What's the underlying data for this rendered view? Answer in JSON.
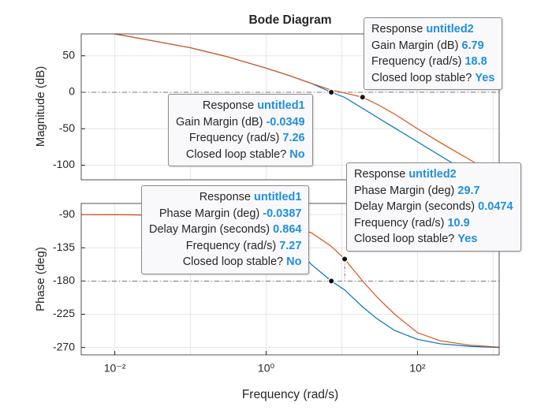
{
  "chart_data": [
    {
      "type": "line",
      "title": "Bode Diagram",
      "ylabel": "Magnitude (dB)",
      "x": [
        0.0036,
        0.01,
        0.03,
        0.1,
        0.3,
        1,
        2,
        4,
        7.26,
        10.9,
        18.8,
        30,
        50,
        100,
        200,
        500,
        1200
      ],
      "series": [
        {
          "color": "#0072bd",
          "values": [
            89,
            80,
            71,
            61,
            49,
            33,
            23,
            12,
            0,
            -7,
            -22,
            -35,
            -49,
            -68,
            -87,
            -112,
            -136
          ]
        },
        {
          "color": "#d95319",
          "values": [
            89,
            80,
            71,
            61,
            49,
            33,
            23,
            12,
            3,
            -1,
            -6.79,
            -17,
            -30,
            -50,
            -69,
            -93,
            -116
          ]
        }
      ],
      "xlog": true,
      "xlim": [
        0.0036,
        1200
      ],
      "xgrid": [
        0.01,
        0.1,
        1,
        10,
        100,
        1000
      ],
      "ylim": [
        -120,
        80
      ],
      "yticks": [
        -100,
        -50,
        0,
        50
      ],
      "grid": true,
      "hline": 0,
      "datatips": [
        {
          "x": 18.8,
          "y": -6.79,
          "lines": [
            {
              "label": "Response",
              "value": "untitled2"
            },
            {
              "label": "Gain Margin (dB)",
              "value": 6.79
            },
            {
              "label": "Frequency (rad/s)",
              "value": 18.8
            },
            {
              "label": "Closed loop stable?",
              "value": "Yes"
            }
          ]
        },
        {
          "x": 7.26,
          "y": 0,
          "lines": [
            {
              "label": "Response",
              "value": "untitled1"
            },
            {
              "label": "Gain Margin (dB)",
              "value": -0.0349
            },
            {
              "label": "Frequency (rad/s)",
              "value": 7.26
            },
            {
              "label": "Closed loop stable?",
              "value": "No"
            }
          ]
        }
      ]
    },
    {
      "type": "line",
      "xlabel": "Frequency (rad/s)",
      "ylabel": "Phase (deg)",
      "x": [
        0.0036,
        0.01,
        0.03,
        0.1,
        0.3,
        1,
        2,
        4,
        7.26,
        10.9,
        18.8,
        30,
        50,
        100,
        200,
        500,
        1200
      ],
      "series": [
        {
          "color": "#0072bd",
          "values": [
            -90,
            -90.3,
            -90.8,
            -92,
            -95,
            -105,
            -125,
            -158,
            -180,
            -192,
            -215,
            -232,
            -247,
            -259,
            -265,
            -268.5,
            -270
          ]
        },
        {
          "color": "#d95319",
          "values": [
            -90,
            -90.2,
            -90.5,
            -91,
            -93,
            -98,
            -104,
            -115,
            -133,
            -150.3,
            -180,
            -203,
            -225,
            -250,
            -261,
            -267,
            -269.5
          ]
        }
      ],
      "xlog": true,
      "xlim": [
        0.0036,
        1200
      ],
      "xgrid": [
        0.01,
        0.1,
        1,
        10,
        100,
        1000
      ],
      "xticks": [
        {
          "value": 0.01,
          "label": "10⁻²"
        },
        {
          "value": 1,
          "label": "10⁰"
        },
        {
          "value": 100,
          "label": "10²"
        }
      ],
      "ylim": [
        -280,
        -75
      ],
      "yticks": [
        -270,
        -225,
        -180,
        -135,
        -90
      ],
      "grid": true,
      "hline": -180,
      "datatips": [
        {
          "x": 7.27,
          "y": -180,
          "lines": [
            {
              "label": "Response",
              "value": "untitled1"
            },
            {
              "label": "Phase Margin (deg)",
              "value": -0.0387
            },
            {
              "label": "Delay Margin (seconds)",
              "value": 0.864
            },
            {
              "label": "Frequency (rad/s)",
              "value": 7.27
            },
            {
              "label": "Closed loop stable?",
              "value": "No"
            }
          ]
        },
        {
          "x": 10.9,
          "y": -150.3,
          "lines": [
            {
              "label": "Response",
              "value": "untitled2"
            },
            {
              "label": "Phase Margin (deg)",
              "value": 29.7
            },
            {
              "label": "Delay Margin (seconds)",
              "value": 0.0474
            },
            {
              "label": "Frequency (rad/s)",
              "value": 10.9
            },
            {
              "label": "Closed loop stable?",
              "value": "Yes"
            }
          ]
        }
      ]
    }
  ]
}
